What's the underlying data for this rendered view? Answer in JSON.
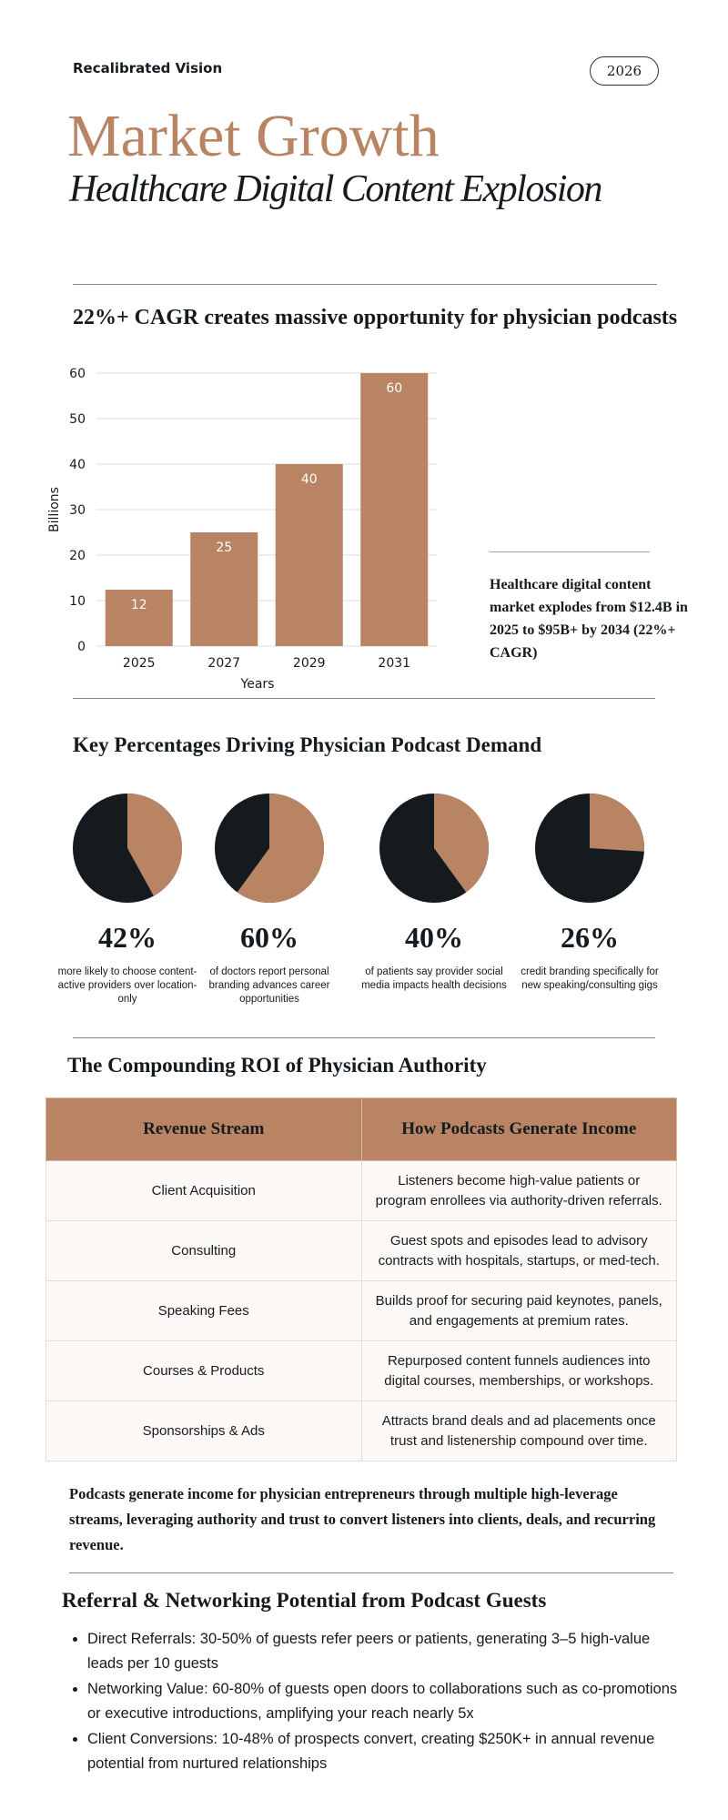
{
  "header": {
    "brand": "Recalibrated Vision",
    "year_badge": "2026",
    "title": "Market Growth",
    "subtitle": "Healthcare Digital Content Explosion"
  },
  "growth_section": {
    "heading": "22%+ CAGR creates massive opportunity for physician podcasts",
    "callout": "Healthcare digital content market explodes from $12.4B in 2025 to $95B+ by 2034 (22%+ CAGR)"
  },
  "chart_data": {
    "type": "bar",
    "categories": [
      "2025",
      "2027",
      "2029",
      "2031"
    ],
    "values": [
      12.4,
      25,
      40,
      60
    ],
    "data_labels": [
      "12",
      "25",
      "40",
      "60"
    ],
    "xlabel": "Years",
    "ylabel": "Billions",
    "ylim": [
      0,
      60
    ],
    "yticks": [
      0,
      10,
      20,
      30,
      40,
      50,
      60
    ],
    "grid": true,
    "bar_color": "#b88463"
  },
  "percentages_section": {
    "heading": "Key Percentages Driving Physician Podcast Demand",
    "items": [
      {
        "value": 42,
        "label": "42%",
        "description": "more likely to choose content-active providers over location-only"
      },
      {
        "value": 60,
        "label": "60%",
        "description": "of doctors report personal branding advances career opportunities"
      },
      {
        "value": 40,
        "label": "40%",
        "description": "of patients say provider social media impacts health decisions"
      },
      {
        "value": 26,
        "label": "26%",
        "description": "credit branding specifically for new speaking/consulting gigs"
      }
    ],
    "colors": {
      "highlight": "#b88463",
      "rest": "#151a1f"
    }
  },
  "roi_section": {
    "heading": "The Compounding ROI of Physician Authority",
    "columns": [
      "Revenue Stream",
      "How Podcasts Generate Income"
    ],
    "rows": [
      {
        "stream": "Client Acquisition",
        "how": "Listeners become high-value patients or program enrollees via authority-driven referrals."
      },
      {
        "stream": "Consulting",
        "how": "Guest spots and episodes lead to advisory contracts with hospitals, startups, or med-tech."
      },
      {
        "stream": "Speaking Fees",
        "how": "Builds proof for securing paid keynotes, panels, and engagements at premium rates."
      },
      {
        "stream": "Courses & Products",
        "how": "Repurposed content funnels audiences into digital courses, memberships, or workshops."
      },
      {
        "stream": "Sponsorships & Ads",
        "how": "Attracts brand deals and ad placements once trust and listenership compound over time."
      }
    ],
    "summary": "Podcasts generate income for physician entrepreneurs through multiple high-leverage streams, leveraging authority and trust to convert listeners into clients, deals, and recurring revenue."
  },
  "referral_section": {
    "heading": "Referral & Networking Potential from Podcast Guests",
    "bullets": [
      "Direct Referrals: 30-50% of guests refer peers or patients, generating 3–5 high-value leads per 10 guests",
      "Networking Value: 60-80% of guests open doors to collaborations such as co-promotions or executive introductions, amplifying your reach nearly 5x",
      "Client Conversions: 10-48% of prospects convert, creating $250K+ in annual revenue potential from nurtured relationships"
    ]
  }
}
